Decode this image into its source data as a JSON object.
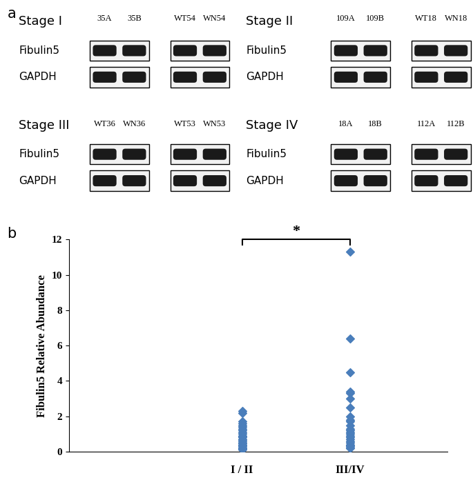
{
  "panels": {
    "a": {
      "label": "a",
      "blots": [
        {
          "stage": "Stage I",
          "lanes": [
            [
              "35A",
              "35B"
            ],
            [
              "WT54",
              "WN54"
            ]
          ],
          "rows": [
            "Fibulin5",
            "GAPDH"
          ]
        },
        {
          "stage": "Stage II",
          "lanes": [
            [
              "109A",
              "109B"
            ],
            [
              "WT18",
              "WN18"
            ]
          ],
          "rows": [
            "Fibulin5",
            "GAPDH"
          ]
        },
        {
          "stage": "Stage III",
          "lanes": [
            [
              "WT36",
              "WN36"
            ],
            [
              "WT53",
              "WN53"
            ]
          ],
          "rows": [
            "Fibulin5",
            "GAPDH"
          ]
        },
        {
          "stage": "Stage IV",
          "lanes": [
            [
              "18A",
              "18B"
            ],
            [
              "112A",
              "112B"
            ]
          ],
          "rows": [
            "Fibulin5",
            "GAPDH"
          ]
        }
      ]
    }
  },
  "chart_data": {
    "type": "scatter",
    "panel_label": "b",
    "ylabel": "Fibulin5 Relative Abundance",
    "categories": [
      "I / II",
      "III/IV"
    ],
    "values": [
      [
        2.3,
        2.2,
        1.7,
        1.6,
        1.5,
        1.4,
        1.3,
        1.2,
        1.1,
        1.0,
        0.9,
        0.85,
        0.8,
        0.7,
        0.65,
        0.6,
        0.5,
        0.45,
        0.4,
        0.35,
        0.3,
        0.25,
        0.2,
        0.15,
        0.1
      ],
      [
        11.3,
        6.4,
        4.5,
        3.4,
        3.3,
        3.0,
        2.5,
        2.0,
        1.8,
        1.7,
        1.5,
        1.3,
        1.2,
        1.1,
        1.0,
        0.9,
        0.8,
        0.7,
        0.6,
        0.5,
        0.4,
        0.35,
        0.3,
        0.25,
        0.2
      ]
    ],
    "color": "#4a7ebb",
    "marker": "diamond",
    "annotations": [
      "*"
    ],
    "ylim": [
      0,
      12
    ],
    "yticks": [
      0,
      2,
      4,
      6,
      8,
      10,
      12
    ]
  }
}
